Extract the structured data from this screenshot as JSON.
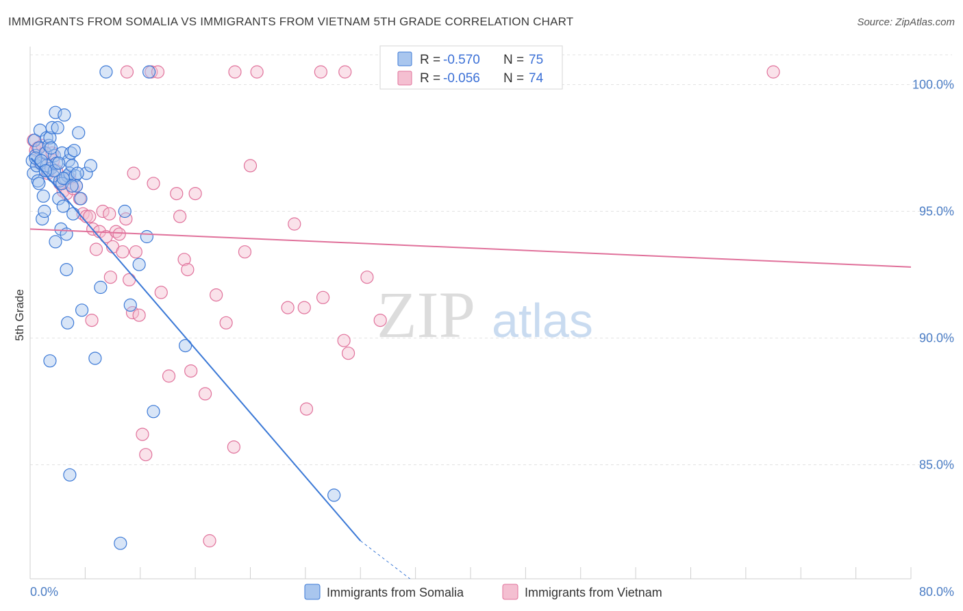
{
  "header": {
    "title": "IMMIGRANTS FROM SOMALIA VS IMMIGRANTS FROM VIETNAM 5TH GRADE CORRELATION CHART",
    "source": "Source: ZipAtlas.com"
  },
  "watermark": {
    "zip": "ZIP",
    "atlas": "atlas"
  },
  "colors": {
    "somalia": "#3a78d6",
    "somalia_fill": "#a9c6ee",
    "vietnam": "#e0709a",
    "vietnam_fill": "#f4bfd1",
    "axis_label": "#4a7cc4",
    "grid": "#e2e2e2"
  },
  "legend": {
    "somalia": {
      "r_label": "R =",
      "r_value": "-0.570",
      "n_label": "N =",
      "n_value": "75"
    },
    "vietnam": {
      "r_label": "R =",
      "r_value": "-0.056",
      "n_label": "N =",
      "n_value": "74"
    }
  },
  "chart_data": {
    "type": "scatter",
    "title": "IMMIGRANTS FROM SOMALIA VS IMMIGRANTS FROM VIETNAM 5TH GRADE CORRELATION CHART",
    "xlabel": "",
    "ylabel": "5th Grade",
    "xlim": [
      0,
      80
    ],
    "ylim": [
      80.5,
      101.5
    ],
    "x_tick_labels": [
      {
        "value": 0,
        "label": "0.0%"
      },
      {
        "value": 80,
        "label": "80.0%"
      }
    ],
    "y_tick_labels": [
      {
        "value": 100,
        "label": "100.0%"
      },
      {
        "value": 95,
        "label": "95.0%"
      },
      {
        "value": 90,
        "label": "90.0%"
      },
      {
        "value": 85,
        "label": "85.0%"
      }
    ],
    "series": [
      {
        "name": "Immigrants from Somalia",
        "r": -0.57,
        "n": 75,
        "trend": {
          "x0": 0.1,
          "y0": 97.1,
          "x1": 30.0,
          "y1": 82.0,
          "dash_x1": 34.5,
          "dash_y1": 79.7
        },
        "points": [
          [
            6.9,
            100.5
          ],
          [
            10.8,
            100.5
          ],
          [
            0.2,
            97.0
          ],
          [
            0.3,
            96.5
          ],
          [
            0.4,
            97.8
          ],
          [
            0.5,
            97.2
          ],
          [
            0.6,
            96.8
          ],
          [
            0.7,
            96.2
          ],
          [
            0.8,
            97.5
          ],
          [
            0.9,
            98.2
          ],
          [
            1.0,
            96.9
          ],
          [
            1.1,
            94.7
          ],
          [
            1.2,
            95.6
          ],
          [
            1.3,
            95.0
          ],
          [
            1.4,
            97.3
          ],
          [
            1.5,
            97.9
          ],
          [
            1.6,
            96.6
          ],
          [
            1.7,
            97.6
          ],
          [
            1.8,
            97.9
          ],
          [
            1.9,
            96.7
          ],
          [
            2.0,
            98.3
          ],
          [
            2.1,
            96.4
          ],
          [
            2.2,
            97.2
          ],
          [
            2.3,
            98.9
          ],
          [
            2.4,
            96.9
          ],
          [
            2.5,
            98.3
          ],
          [
            2.6,
            95.5
          ],
          [
            2.7,
            96.2
          ],
          [
            2.8,
            94.3
          ],
          [
            2.9,
            97.3
          ],
          [
            3.0,
            95.2
          ],
          [
            3.1,
            98.8
          ],
          [
            3.2,
            96.3
          ],
          [
            3.3,
            94.1
          ],
          [
            3.4,
            96.4
          ],
          [
            3.5,
            97.0
          ],
          [
            3.6,
            96.5
          ],
          [
            3.7,
            97.3
          ],
          [
            3.8,
            96.8
          ],
          [
            3.9,
            94.9
          ],
          [
            4.0,
            97.4
          ],
          [
            4.1,
            96.4
          ],
          [
            4.2,
            96.0
          ],
          [
            4.4,
            98.1
          ],
          [
            4.6,
            95.5
          ],
          [
            5.1,
            96.5
          ],
          [
            5.5,
            96.8
          ],
          [
            2.3,
            93.8
          ],
          [
            3.3,
            92.7
          ],
          [
            3.4,
            90.6
          ],
          [
            1.8,
            89.1
          ],
          [
            4.7,
            91.1
          ],
          [
            5.9,
            89.2
          ],
          [
            6.4,
            92.0
          ],
          [
            8.6,
            95.0
          ],
          [
            9.1,
            91.3
          ],
          [
            9.9,
            92.9
          ],
          [
            10.6,
            94.0
          ],
          [
            14.1,
            89.7
          ],
          [
            11.2,
            87.1
          ],
          [
            3.6,
            84.6
          ],
          [
            8.2,
            81.9
          ],
          [
            27.6,
            83.8
          ],
          [
            1.5,
            96.8
          ],
          [
            2.9,
            96.1
          ],
          [
            0.5,
            97.1
          ],
          [
            3.0,
            96.3
          ],
          [
            1.0,
            97.0
          ],
          [
            2.2,
            96.6
          ],
          [
            3.8,
            96.0
          ],
          [
            1.4,
            96.6
          ],
          [
            2.6,
            96.9
          ],
          [
            0.8,
            96.1
          ],
          [
            1.9,
            97.5
          ],
          [
            4.3,
            96.5
          ]
        ]
      },
      {
        "name": "Immigrants from Vietnam",
        "r": -0.056,
        "n": 74,
        "trend": {
          "x0": 0.0,
          "y0": 94.3,
          "x1": 80.0,
          "y1": 92.8
        },
        "points": [
          [
            8.8,
            100.5
          ],
          [
            11.0,
            100.5
          ],
          [
            11.6,
            100.5
          ],
          [
            18.6,
            100.5
          ],
          [
            20.6,
            100.5
          ],
          [
            26.4,
            100.5
          ],
          [
            28.6,
            100.5
          ],
          [
            67.5,
            100.5
          ],
          [
            0.3,
            97.8
          ],
          [
            0.5,
            97.4
          ],
          [
            0.7,
            97.5
          ],
          [
            0.9,
            96.9
          ],
          [
            1.1,
            97.6
          ],
          [
            1.3,
            97.3
          ],
          [
            1.6,
            96.5
          ],
          [
            1.9,
            96.7
          ],
          [
            2.1,
            97.0
          ],
          [
            2.4,
            96.6
          ],
          [
            2.7,
            96.1
          ],
          [
            3.0,
            95.8
          ],
          [
            3.3,
            95.7
          ],
          [
            3.6,
            96.3
          ],
          [
            3.9,
            95.9
          ],
          [
            4.2,
            96.0
          ],
          [
            4.5,
            95.5
          ],
          [
            4.8,
            94.9
          ],
          [
            5.1,
            94.8
          ],
          [
            5.4,
            94.8
          ],
          [
            5.7,
            94.3
          ],
          [
            6.0,
            93.5
          ],
          [
            6.3,
            94.2
          ],
          [
            6.6,
            95.0
          ],
          [
            6.9,
            94.0
          ],
          [
            7.2,
            94.9
          ],
          [
            7.5,
            93.6
          ],
          [
            7.8,
            94.2
          ],
          [
            8.1,
            94.1
          ],
          [
            8.4,
            93.4
          ],
          [
            8.7,
            94.7
          ],
          [
            9.0,
            92.3
          ],
          [
            9.3,
            91.0
          ],
          [
            9.6,
            93.4
          ],
          [
            9.9,
            90.9
          ],
          [
            10.2,
            86.2
          ],
          [
            10.5,
            85.4
          ],
          [
            11.2,
            96.1
          ],
          [
            11.9,
            91.8
          ],
          [
            12.6,
            88.5
          ],
          [
            13.3,
            95.7
          ],
          [
            13.6,
            94.8
          ],
          [
            14.0,
            93.1
          ],
          [
            14.3,
            92.7
          ],
          [
            14.6,
            88.7
          ],
          [
            15.0,
            95.7
          ],
          [
            15.9,
            87.8
          ],
          [
            16.9,
            91.7
          ],
          [
            17.8,
            90.6
          ],
          [
            18.5,
            85.7
          ],
          [
            19.5,
            93.4
          ],
          [
            20.0,
            96.8
          ],
          [
            23.4,
            91.2
          ],
          [
            24.0,
            94.5
          ],
          [
            24.9,
            91.2
          ],
          [
            25.1,
            87.2
          ],
          [
            26.6,
            91.6
          ],
          [
            28.5,
            89.9
          ],
          [
            28.9,
            89.4
          ],
          [
            30.6,
            92.4
          ],
          [
            31.8,
            90.7
          ],
          [
            16.3,
            82.0
          ],
          [
            5.6,
            90.7
          ],
          [
            7.3,
            92.4
          ],
          [
            9.4,
            96.5
          ],
          [
            2.0,
            97.3
          ]
        ]
      }
    ],
    "legend_position": "top-center",
    "grid": true
  },
  "bottom_legend": [
    "Immigrants from Somalia",
    "Immigrants from Vietnam"
  ]
}
